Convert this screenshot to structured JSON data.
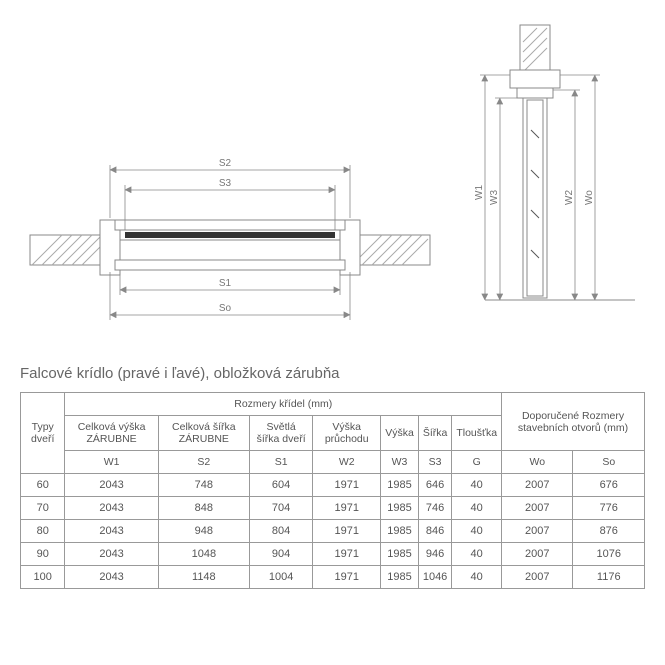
{
  "title": "Falcové krídlo (pravé i ľavé), obložková zárubňa",
  "diagram_top": {
    "labels": {
      "s2": "S2",
      "s3": "S3",
      "s1": "S1",
      "so": "So"
    },
    "colors": {
      "stroke": "#888888",
      "dim": "#888888",
      "hatch": "#aaaaaa",
      "dark": "#333333",
      "background": "#ffffff"
    },
    "fontsize": 10
  },
  "diagram_side": {
    "labels": {
      "w1": "W1",
      "w3": "W3",
      "w2": "W2",
      "wo": "Wo"
    },
    "colors": {
      "stroke": "#888888",
      "dim": "#888888",
      "hatch": "#aaaaaa",
      "dark": "#333333",
      "background": "#ffffff"
    },
    "fontsize": 10
  },
  "table": {
    "group_headers": {
      "typy": "Typy dveří",
      "rozm": "Rozmery křídel (mm)",
      "dopor": "Doporučené Rozmery stavebních otvorů (mm)"
    },
    "sub_headers": [
      "Celková výška ZÁRUBNE",
      "Celková šířka ZÁRUBNE",
      "Světlá šířka dveří",
      "Výška průchodu",
      "Výška",
      "Šířka",
      "Tloušťka"
    ],
    "sym_row": [
      "W1",
      "S2",
      "S1",
      "W2",
      "W3",
      "S3",
      "G",
      "Wo",
      "So"
    ],
    "rows": [
      [
        "60",
        "2043",
        "748",
        "604",
        "1971",
        "1985",
        "646",
        "40",
        "2007",
        "676"
      ],
      [
        "70",
        "2043",
        "848",
        "704",
        "1971",
        "1985",
        "746",
        "40",
        "2007",
        "776"
      ],
      [
        "80",
        "2043",
        "948",
        "804",
        "1971",
        "1985",
        "846",
        "40",
        "2007",
        "876"
      ],
      [
        "90",
        "2043",
        "1048",
        "904",
        "1971",
        "1985",
        "946",
        "40",
        "2007",
        "1076"
      ],
      [
        "100",
        "2043",
        "1148",
        "1004",
        "1971",
        "1985",
        "1046",
        "40",
        "2007",
        "1176"
      ]
    ],
    "colors": {
      "border": "#999999",
      "text": "#555555",
      "background": "#ffffff"
    },
    "fontsize": 11
  }
}
